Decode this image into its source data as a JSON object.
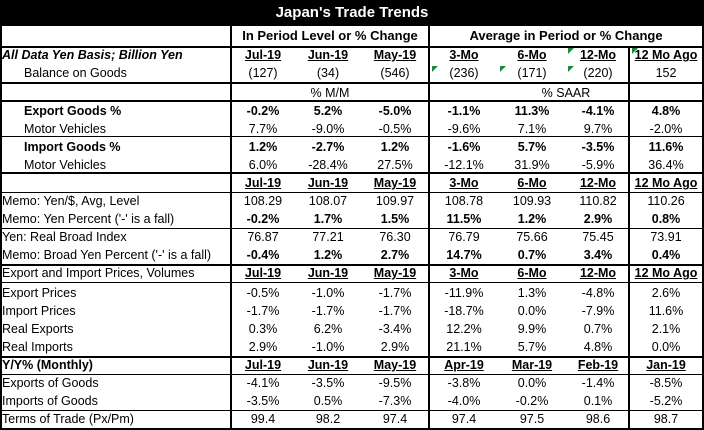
{
  "title": "Japan's Trade Trends",
  "headers": {
    "left": "In Period Level or % Change",
    "right": "Average in Period or % Change"
  },
  "rows": [
    {
      "label": "All Data Yen Basis; Billion Yen",
      "cells": [
        "Jul-19",
        "Jun-19",
        "May-19",
        "3-Mo",
        "6-Mo",
        "12-Mo",
        "12 Mo Ago"
      ]
    },
    {
      "label": "Balance on Goods",
      "cells": [
        "(127)",
        "(34)",
        "(546)",
        "(236)",
        "(171)",
        "(220)",
        "152"
      ]
    },
    {
      "label": "",
      "cells": [
        "% M/M",
        "% SAAR"
      ]
    },
    {
      "label": "Export Goods %",
      "cells": [
        "-0.2%",
        "5.2%",
        "-5.0%",
        "-1.1%",
        "11.3%",
        "-4.1%",
        "4.8%"
      ]
    },
    {
      "label": "Motor Vehicles",
      "cells": [
        "7.7%",
        "-9.0%",
        "-0.5%",
        "-9.6%",
        "7.1%",
        "9.7%",
        "-2.0%"
      ]
    },
    {
      "label": "Import Goods %",
      "cells": [
        "1.2%",
        "-2.7%",
        "1.2%",
        "-1.6%",
        "5.7%",
        "-3.5%",
        "11.6%"
      ]
    },
    {
      "label": "Motor Vehicles",
      "cells": [
        "6.0%",
        "-28.4%",
        "27.5%",
        "-12.1%",
        "31.9%",
        "-5.9%",
        "36.4%"
      ]
    },
    {
      "label": "",
      "cells": [
        "Jul-19",
        "Jun-19",
        "May-19",
        "3-Mo",
        "6-Mo",
        "12-Mo",
        "12 Mo Ago"
      ]
    },
    {
      "label": "Memo: Yen/$, Avg, Level",
      "cells": [
        "108.29",
        "108.07",
        "109.97",
        "108.78",
        "109.93",
        "110.82",
        "110.26"
      ]
    },
    {
      "label": "Memo: Yen Percent ('-' is a fall)",
      "cells": [
        "-0.2%",
        "1.7%",
        "1.5%",
        "11.5%",
        "1.2%",
        "2.9%",
        "0.8%"
      ]
    },
    {
      "label": "Yen: Real Broad Index",
      "cells": [
        "76.87",
        "77.21",
        "76.30",
        "76.79",
        "75.66",
        "75.45",
        "73.91"
      ]
    },
    {
      "label": "Memo: Broad Yen Percent ('-' is a fall)",
      "cells": [
        "-0.4%",
        "1.2%",
        "2.7%",
        "14.7%",
        "0.7%",
        "3.4%",
        "0.4%"
      ]
    },
    {
      "label": "Export and Import Prices, Volumes",
      "cells": [
        "Jul-19",
        "Jun-19",
        "May-19",
        "3-Mo",
        "6-Mo",
        "12-Mo",
        "12 Mo Ago"
      ]
    },
    {
      "label": "Export Prices",
      "cells": [
        "-0.5%",
        "-1.0%",
        "-1.7%",
        "-11.9%",
        "1.3%",
        "-4.8%",
        "2.6%"
      ]
    },
    {
      "label": "Import Prices",
      "cells": [
        "-1.7%",
        "-1.7%",
        "-1.7%",
        "-18.7%",
        "0.0%",
        "-7.9%",
        "11.6%"
      ]
    },
    {
      "label": "Real Exports",
      "cells": [
        "0.3%",
        "6.2%",
        "-3.4%",
        "12.2%",
        "9.9%",
        "0.7%",
        "2.1%"
      ]
    },
    {
      "label": "Real Imports",
      "cells": [
        "2.9%",
        "-1.0%",
        "2.9%",
        "21.1%",
        "5.7%",
        "4.8%",
        "0.0%"
      ]
    },
    {
      "label": "Y/Y% (Monthly)",
      "cells": [
        "Jul-19",
        "Jun-19",
        "May-19",
        "Apr-19",
        "Mar-19",
        "Feb-19",
        "Jan-19"
      ]
    },
    {
      "label": "Exports of Goods",
      "cells": [
        "-4.1%",
        "-3.5%",
        "-9.5%",
        "-3.8%",
        "0.0%",
        "-1.4%",
        "-8.5%"
      ]
    },
    {
      "label": "Imports of Goods",
      "cells": [
        "-3.5%",
        "0.5%",
        "-7.3%",
        "-4.0%",
        "-0.2%",
        "0.1%",
        "-5.2%"
      ]
    },
    {
      "label": "Terms of Trade (Px/Pm)",
      "cells": [
        "99.4",
        "98.2",
        "97.4",
        "97.4",
        "97.5",
        "98.6",
        "98.7"
      ]
    }
  ],
  "colors": {
    "title_bg": "#000000",
    "title_text": "#ffffff",
    "grid": "#000000",
    "indicator": "#1c8a3c"
  }
}
